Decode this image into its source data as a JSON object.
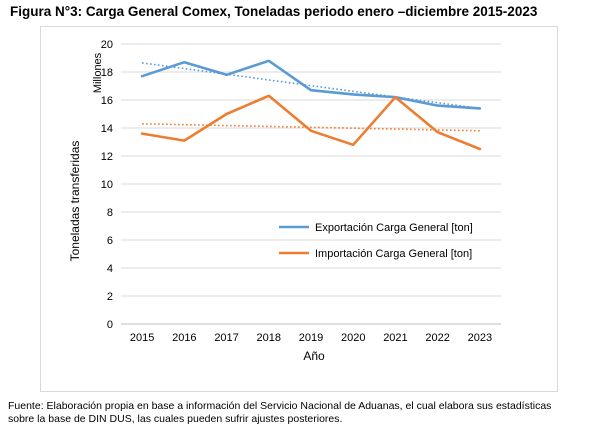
{
  "figure": {
    "title": "Figura N°3: Carga General Comex, Toneladas periodo enero –diciembre 2015-2023",
    "source_lines": [
      "Fuente: Elaboración propia en base a información del Servicio Nacional de Aduanas, el cual elabora sus estadísticas",
      "sobre la base de DIN DUS, las cuales pueden sufrir ajustes posteriores."
    ]
  },
  "chart_data": {
    "type": "line",
    "x": [
      2015,
      2016,
      2017,
      2018,
      2019,
      2020,
      2021,
      2022,
      2023
    ],
    "xlabel": "Año",
    "ylabel": "Toneladas transferidas",
    "yunit": "Millones",
    "ylim": [
      0,
      20
    ],
    "yticks": [
      0,
      2,
      4,
      6,
      8,
      10,
      12,
      14,
      16,
      18,
      20
    ],
    "grid": true,
    "legend_position": "center-right",
    "series": [
      {
        "name": "Exportación Carga General [ton]",
        "color": "#5b9bd5",
        "values": [
          17.7,
          18.7,
          17.8,
          18.8,
          16.7,
          16.4,
          16.2,
          15.6,
          15.4
        ],
        "trendline": [
          18.65,
          15.4
        ]
      },
      {
        "name": "Importación Carga General [ton]",
        "color": "#ed7d31",
        "values": [
          13.6,
          13.1,
          15.0,
          16.3,
          13.8,
          12.8,
          16.2,
          13.7,
          12.5
        ],
        "trendline": [
          14.3,
          13.8
        ]
      }
    ]
  }
}
